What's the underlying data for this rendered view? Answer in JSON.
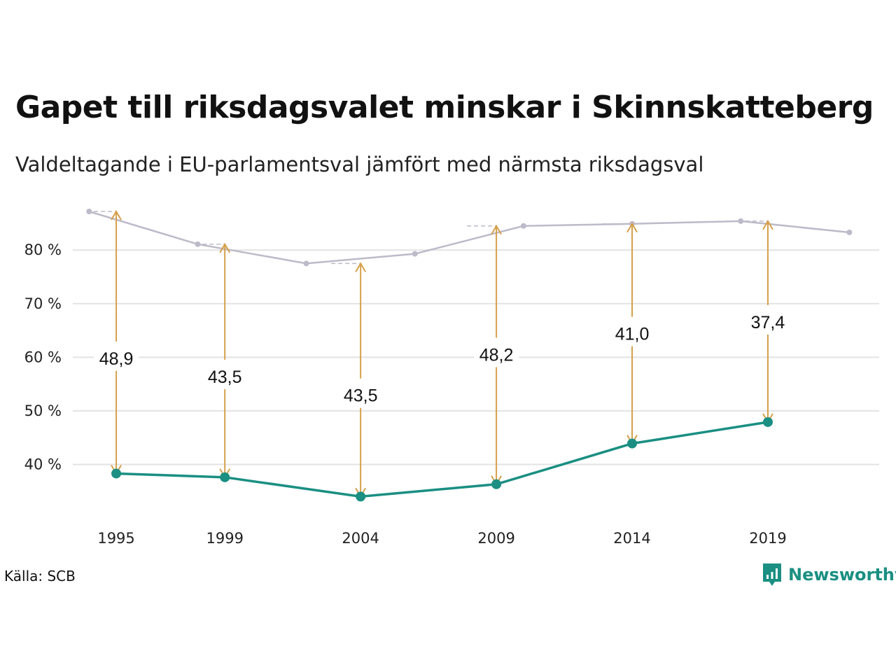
{
  "header": {
    "title": "Gapet till riksdagsvalet minskar i Skinnskatteberg",
    "subtitle": "Valdeltagande i EU-parlamentsval jämfört med närmsta riksdagsval"
  },
  "footer": {
    "source": "Källa: SCB",
    "brand": "Newsworthy",
    "brand_icon": "newsworthy-logo-icon"
  },
  "colors": {
    "eu": "#1a8f82",
    "riksdag": "#bdbac9",
    "gap": "#d6a04a",
    "grid": "#e3e3e3",
    "brand": "#1a8f82"
  },
  "chart_data": {
    "type": "line",
    "ylim": [
      30,
      88
    ],
    "yticks": [
      40,
      50,
      60,
      70,
      80
    ],
    "ytick_labels": [
      "40 %",
      "50 %",
      "60 %",
      "70 %",
      "80 %"
    ],
    "xlim": [
      1993.4,
      2023.1
    ],
    "xticks": [
      1995,
      1999,
      2004,
      2009,
      2014,
      2019
    ],
    "xtick_labels": [
      "1995",
      "1999",
      "2004",
      "2009",
      "2014",
      "2019"
    ],
    "grid": true,
    "series": [
      {
        "key": "riksdag",
        "x": [
          1994,
          1998,
          2002,
          2006,
          2010,
          2014,
          2018,
          2022
        ],
        "values": [
          87.2,
          81.1,
          77.5,
          79.3,
          84.5,
          84.9,
          85.4,
          83.3
        ]
      },
      {
        "key": "eu",
        "x": [
          1995,
          1999,
          2004,
          2009,
          2014,
          2019
        ],
        "values": [
          38.3,
          37.6,
          34.0,
          36.3,
          43.9,
          47.9
        ]
      }
    ],
    "gaps": [
      {
        "x": 1995,
        "label": "48,9",
        "top": 87.2,
        "bottom": 38.3,
        "label_y": 59.8
      },
      {
        "x": 1999,
        "label": "43,5",
        "top": 81.1,
        "bottom": 37.6,
        "label_y": 56.4
      },
      {
        "x": 2004,
        "label": "43,5",
        "top": 77.5,
        "bottom": 34.0,
        "label_y": 52.9
      },
      {
        "x": 2009,
        "label": "48,2",
        "top": 84.5,
        "bottom": 36.3,
        "label_y": 60.5
      },
      {
        "x": 2014,
        "label": "41,0",
        "top": 84.9,
        "bottom": 43.9,
        "label_y": 64.4
      },
      {
        "x": 2019,
        "label": "37,4",
        "top": 85.4,
        "bottom": 47.9,
        "label_y": 66.6
      }
    ]
  }
}
